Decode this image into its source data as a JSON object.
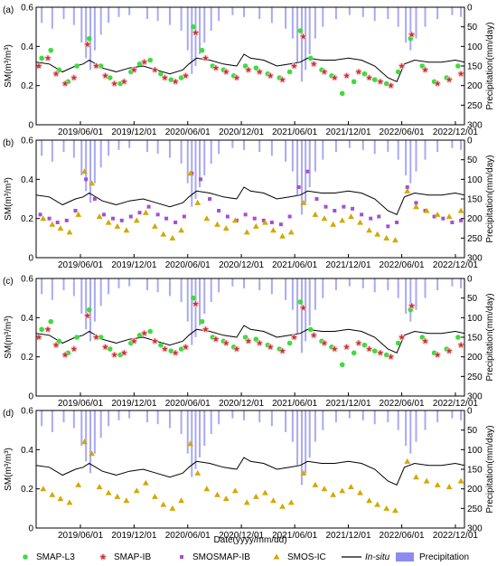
{
  "chart_data": {
    "type": "scatter",
    "x_label": "Date(yyyy/mm/dd)",
    "x_ticks": [
      "2019/06/01",
      "2019/12/01",
      "2020/06/01",
      "2020/12/01",
      "2021/06/01",
      "2021/12/01",
      "2022/06/01",
      "2022/12/01"
    ],
    "x_range": [
      "2019/01/01",
      "2023/01/01"
    ],
    "y_left": {
      "label": "SM(m³/m³)",
      "range": [
        0,
        0.6
      ],
      "ticks": [
        "0",
        "0.2",
        "0.4",
        "0.6"
      ]
    },
    "y_right": {
      "label": "Precipitation(mm/day)",
      "range": [
        0,
        300
      ],
      "inverted": true,
      "ticks": [
        "0",
        "50",
        "100",
        "150",
        "200",
        "250",
        "300"
      ]
    },
    "colors": {
      "smap_l3": "#3ddc3d",
      "smap_ib": "#c0392b",
      "smap_ib_halo": "#f7b6c9",
      "smosmap_ib": "#a64dd6",
      "smos_ic": "#d4a800",
      "in_situ": "#000000",
      "precipitation": "#8c8cf0"
    },
    "legend": {
      "placement": "bottom",
      "items": [
        {
          "key": "smap_l3",
          "label": "SMAP-L3",
          "marker": "circle"
        },
        {
          "key": "smap_ib",
          "label": "SMAP-IB",
          "marker": "star"
        },
        {
          "key": "smosmap_ib",
          "label": "SMOSMAP-IB",
          "marker": "square"
        },
        {
          "key": "smos_ic",
          "label": "SMOS-IC",
          "marker": "triangle"
        },
        {
          "key": "in_situ",
          "label": "In-situ",
          "marker": "line"
        },
        {
          "key": "precipitation",
          "label": "Precipitation",
          "marker": "bar"
        }
      ]
    },
    "panels": [
      {
        "label": "(a)",
        "series": [
          "smap_l3",
          "smap_ib"
        ]
      },
      {
        "label": "(b)",
        "series": [
          "smosmap_ib",
          "smos_ic"
        ]
      },
      {
        "label": "(c)",
        "series": [
          "smap_l3",
          "smap_ib"
        ]
      },
      {
        "label": "(d)",
        "series": [
          "smos_ic"
        ]
      }
    ],
    "series": {
      "in_situ": [
        [
          "2019/01/01",
          0.32
        ],
        [
          "2019/02/15",
          0.31
        ],
        [
          "2019/04/01",
          0.27
        ],
        [
          "2019/05/15",
          0.3
        ],
        [
          "2019/06/10",
          0.31
        ],
        [
          "2019/07/01",
          0.33
        ],
        [
          "2019/08/15",
          0.29
        ],
        [
          "2019/10/01",
          0.27
        ],
        [
          "2019/11/15",
          0.29
        ],
        [
          "2020/01/01",
          0.3
        ],
        [
          "2020/02/15",
          0.28
        ],
        [
          "2020/04/01",
          0.26
        ],
        [
          "2020/05/15",
          0.28
        ],
        [
          "2020/06/05",
          0.31
        ],
        [
          "2020/07/01",
          0.34
        ],
        [
          "2020/08/15",
          0.33
        ],
        [
          "2020/10/01",
          0.31
        ],
        [
          "2020/11/15",
          0.3
        ],
        [
          "2020/12/10",
          0.36
        ],
        [
          "2021/01/01",
          0.34
        ],
        [
          "2021/02/15",
          0.33
        ],
        [
          "2021/04/01",
          0.3
        ],
        [
          "2021/05/15",
          0.31
        ],
        [
          "2021/06/20",
          0.32
        ],
        [
          "2021/07/15",
          0.34
        ],
        [
          "2021/09/01",
          0.33
        ],
        [
          "2021/10/15",
          0.33
        ],
        [
          "2021/12/01",
          0.34
        ],
        [
          "2022/01/15",
          0.33
        ],
        [
          "2022/03/01",
          0.3
        ],
        [
          "2022/04/15",
          0.24
        ],
        [
          "2022/05/15",
          0.22
        ],
        [
          "2022/06/10",
          0.31
        ],
        [
          "2022/07/15",
          0.33
        ],
        [
          "2022/09/01",
          0.32
        ],
        [
          "2022/10/15",
          0.32
        ],
        [
          "2022/12/01",
          0.33
        ],
        [
          "2023/01/01",
          0.32
        ]
      ],
      "smap_l3": [
        [
          "2019/01/20",
          0.34
        ],
        [
          "2019/02/20",
          0.38
        ],
        [
          "2019/03/20",
          0.28
        ],
        [
          "2019/04/20",
          0.22
        ],
        [
          "2019/05/20",
          0.3
        ],
        [
          "2019/07/01",
          0.44
        ],
        [
          "2019/08/10",
          0.3
        ],
        [
          "2019/09/10",
          0.24
        ],
        [
          "2019/10/15",
          0.21
        ],
        [
          "2019/11/20",
          0.27
        ],
        [
          "2019/12/20",
          0.31
        ],
        [
          "2020/01/25",
          0.33
        ],
        [
          "2020/03/01",
          0.26
        ],
        [
          "2020/04/05",
          0.23
        ],
        [
          "2020/05/10",
          0.24
        ],
        [
          "2020/06/20",
          0.5
        ],
        [
          "2020/07/20",
          0.38
        ],
        [
          "2020/08/25",
          0.3
        ],
        [
          "2020/10/01",
          0.28
        ],
        [
          "2020/11/05",
          0.25
        ],
        [
          "2020/12/15",
          0.3
        ],
        [
          "2021/01/20",
          0.29
        ],
        [
          "2021/03/01",
          0.26
        ],
        [
          "2021/04/10",
          0.24
        ],
        [
          "2021/05/15",
          0.27
        ],
        [
          "2021/06/20",
          0.48
        ],
        [
          "2021/07/25",
          0.34
        ],
        [
          "2021/09/01",
          0.28
        ],
        [
          "2021/10/05",
          0.25
        ],
        [
          "2021/11/10",
          0.16
        ],
        [
          "2021/12/20",
          0.22
        ],
        [
          "2022/01/25",
          0.26
        ],
        [
          "2022/03/01",
          0.23
        ],
        [
          "2022/04/10",
          0.21
        ],
        [
          "2022/05/20",
          0.27
        ],
        [
          "2022/07/01",
          0.44
        ],
        [
          "2022/08/10",
          0.3
        ],
        [
          "2022/09/20",
          0.22
        ],
        [
          "2022/11/01",
          0.24
        ],
        [
          "2022/12/10",
          0.3
        ]
      ],
      "smap_ib": [
        [
          "2019/01/10",
          0.3
        ],
        [
          "2019/02/10",
          0.34
        ],
        [
          "2019/03/10",
          0.26
        ],
        [
          "2019/04/10",
          0.21
        ],
        [
          "2019/05/10",
          0.24
        ],
        [
          "2019/06/25",
          0.41
        ],
        [
          "2019/07/25",
          0.3
        ],
        [
          "2019/08/25",
          0.25
        ],
        [
          "2019/09/25",
          0.21
        ],
        [
          "2019/10/28",
          0.22
        ],
        [
          "2019/12/01",
          0.28
        ],
        [
          "2020/01/05",
          0.32
        ],
        [
          "2020/02/10",
          0.28
        ],
        [
          "2020/03/15",
          0.24
        ],
        [
          "2020/04/20",
          0.22
        ],
        [
          "2020/05/25",
          0.25
        ],
        [
          "2020/06/28",
          0.47
        ],
        [
          "2020/08/01",
          0.34
        ],
        [
          "2020/09/05",
          0.29
        ],
        [
          "2020/10/10",
          0.27
        ],
        [
          "2020/11/15",
          0.24
        ],
        [
          "2020/12/25",
          0.28
        ],
        [
          "2021/02/01",
          0.27
        ],
        [
          "2021/03/10",
          0.25
        ],
        [
          "2021/04/20",
          0.23
        ],
        [
          "2021/05/30",
          0.3
        ],
        [
          "2021/06/30",
          0.45
        ],
        [
          "2021/08/05",
          0.31
        ],
        [
          "2021/09/10",
          0.27
        ],
        [
          "2021/10/15",
          0.24
        ],
        [
          "2021/11/25",
          0.25
        ],
        [
          "2022/01/05",
          0.27
        ],
        [
          "2022/02/10",
          0.24
        ],
        [
          "2022/03/20",
          0.22
        ],
        [
          "2022/04/25",
          0.2
        ],
        [
          "2022/06/01",
          0.3
        ],
        [
          "2022/07/05",
          0.46
        ],
        [
          "2022/08/20",
          0.28
        ],
        [
          "2022/10/01",
          0.21
        ],
        [
          "2022/11/10",
          0.23
        ],
        [
          "2022/12/20",
          0.26
        ]
      ],
      "smosmap_ib": [
        [
          "2019/01/15",
          0.22
        ],
        [
          "2019/02/15",
          0.2
        ],
        [
          "2019/03/15",
          0.18
        ],
        [
          "2019/04/15",
          0.19
        ],
        [
          "2019/05/15",
          0.24
        ],
        [
          "2019/06/20",
          0.4
        ],
        [
          "2019/07/20",
          0.3
        ],
        [
          "2019/08/20",
          0.22
        ],
        [
          "2019/09/20",
          0.2
        ],
        [
          "2019/10/20",
          0.19
        ],
        [
          "2019/11/20",
          0.21
        ],
        [
          "2019/12/20",
          0.23
        ],
        [
          "2020/01/20",
          0.26
        ],
        [
          "2020/02/20",
          0.22
        ],
        [
          "2020/03/20",
          0.2
        ],
        [
          "2020/04/20",
          0.18
        ],
        [
          "2020/05/20",
          0.21
        ],
        [
          "2020/06/15",
          0.43
        ],
        [
          "2020/07/15",
          0.4
        ],
        [
          "2020/08/15",
          0.3
        ],
        [
          "2020/09/15",
          0.24
        ],
        [
          "2020/10/15",
          0.21
        ],
        [
          "2020/11/15",
          0.19
        ],
        [
          "2020/12/15",
          0.22
        ],
        [
          "2021/01/15",
          0.2
        ],
        [
          "2021/02/15",
          0.19
        ],
        [
          "2021/03/15",
          0.18
        ],
        [
          "2021/04/15",
          0.17
        ],
        [
          "2021/05/15",
          0.21
        ],
        [
          "2021/06/15",
          0.36
        ],
        [
          "2021/07/15",
          0.44
        ],
        [
          "2021/08/15",
          0.3
        ],
        [
          "2021/09/15",
          0.26
        ],
        [
          "2021/10/15",
          0.24
        ],
        [
          "2021/11/15",
          0.26
        ],
        [
          "2021/12/15",
          0.25
        ],
        [
          "2022/01/15",
          0.22
        ],
        [
          "2022/02/15",
          0.2
        ],
        [
          "2022/03/15",
          0.21
        ],
        [
          "2022/04/15",
          0.16
        ],
        [
          "2022/05/15",
          0.18
        ],
        [
          "2022/06/20",
          0.36
        ],
        [
          "2022/07/20",
          0.28
        ],
        [
          "2022/08/20",
          0.24
        ],
        [
          "2022/09/20",
          0.21
        ],
        [
          "2022/10/20",
          0.2
        ],
        [
          "2022/11/20",
          0.18
        ],
        [
          "2022/12/20",
          0.19
        ]
      ],
      "smos_ic": [
        [
          "2019/01/25",
          0.2
        ],
        [
          "2019/02/25",
          0.17
        ],
        [
          "2019/03/25",
          0.15
        ],
        [
          "2019/04/25",
          0.13
        ],
        [
          "2019/05/25",
          0.22
        ],
        [
          "2019/06/15",
          0.44
        ],
        [
          "2019/07/10",
          0.38
        ],
        [
          "2019/08/05",
          0.21
        ],
        [
          "2019/09/05",
          0.18
        ],
        [
          "2019/10/05",
          0.16
        ],
        [
          "2019/11/05",
          0.14
        ],
        [
          "2019/12/10",
          0.19
        ],
        [
          "2020/01/10",
          0.23
        ],
        [
          "2020/02/10",
          0.16
        ],
        [
          "2020/03/10",
          0.12
        ],
        [
          "2020/04/10",
          0.1
        ],
        [
          "2020/05/10",
          0.14
        ],
        [
          "2020/06/10",
          0.43
        ],
        [
          "2020/07/05",
          0.28
        ],
        [
          "2020/08/05",
          0.2
        ],
        [
          "2020/09/10",
          0.17
        ],
        [
          "2020/10/10",
          0.15
        ],
        [
          "2020/11/10",
          0.19
        ],
        [
          "2020/12/20",
          0.13
        ],
        [
          "2021/01/20",
          0.16
        ],
        [
          "2021/02/20",
          0.18
        ],
        [
          "2021/03/20",
          0.14
        ],
        [
          "2021/04/20",
          0.11
        ],
        [
          "2021/05/20",
          0.13
        ],
        [
          "2021/07/01",
          0.28
        ],
        [
          "2021/08/10",
          0.22
        ],
        [
          "2021/09/10",
          0.2
        ],
        [
          "2021/10/10",
          0.17
        ],
        [
          "2021/11/10",
          0.19
        ],
        [
          "2021/12/10",
          0.21
        ],
        [
          "2022/01/10",
          0.18
        ],
        [
          "2022/02/10",
          0.14
        ],
        [
          "2022/03/10",
          0.12
        ],
        [
          "2022/04/10",
          0.1
        ],
        [
          "2022/05/10",
          0.09
        ],
        [
          "2022/06/20",
          0.34
        ],
        [
          "2022/07/20",
          0.26
        ],
        [
          "2022/08/25",
          0.24
        ],
        [
          "2022/10/01",
          0.22
        ],
        [
          "2022/11/10",
          0.21
        ],
        [
          "2022/12/20",
          0.24
        ]
      ],
      "precipitation": [
        [
          "2019/01/20",
          40
        ],
        [
          "2019/02/25",
          55
        ],
        [
          "2019/04/05",
          30
        ],
        [
          "2019/05/10",
          45
        ],
        [
          "2019/06/05",
          90
        ],
        [
          "2019/06/20",
          130
        ],
        [
          "2019/07/05",
          160
        ],
        [
          "2019/07/20",
          110
        ],
        [
          "2019/08/10",
          70
        ],
        [
          "2019/09/05",
          40
        ],
        [
          "2019/10/10",
          25
        ],
        [
          "2019/11/15",
          20
        ],
        [
          "2020/01/15",
          30
        ],
        [
          "2020/02/20",
          35
        ],
        [
          "2020/04/01",
          45
        ],
        [
          "2020/05/10",
          60
        ],
        [
          "2020/06/01",
          110
        ],
        [
          "2020/06/15",
          170
        ],
        [
          "2020/06/28",
          150
        ],
        [
          "2020/07/12",
          120
        ],
        [
          "2020/07/28",
          90
        ],
        [
          "2020/08/20",
          60
        ],
        [
          "2020/09/15",
          35
        ],
        [
          "2020/11/01",
          20
        ],
        [
          "2020/12/10",
          25
        ],
        [
          "2021/02/01",
          30
        ],
        [
          "2021/03/15",
          40
        ],
        [
          "2021/05/01",
          55
        ],
        [
          "2021/05/25",
          80
        ],
        [
          "2021/06/10",
          140
        ],
        [
          "2021/06/25",
          190
        ],
        [
          "2021/07/08",
          160
        ],
        [
          "2021/07/22",
          120
        ],
        [
          "2021/08/10",
          80
        ],
        [
          "2021/09/05",
          50
        ],
        [
          "2021/10/20",
          30
        ],
        [
          "2021/12/05",
          20
        ],
        [
          "2022/01/20",
          25
        ],
        [
          "2022/03/01",
          35
        ],
        [
          "2022/04/15",
          30
        ],
        [
          "2022/05/20",
          50
        ],
        [
          "2022/06/15",
          90
        ],
        [
          "2022/07/01",
          110
        ],
        [
          "2022/07/20",
          80
        ],
        [
          "2022/08/20",
          50
        ],
        [
          "2022/10/01",
          30
        ],
        [
          "2022/11/20",
          20
        ],
        [
          "2022/12/20",
          25
        ]
      ]
    }
  }
}
